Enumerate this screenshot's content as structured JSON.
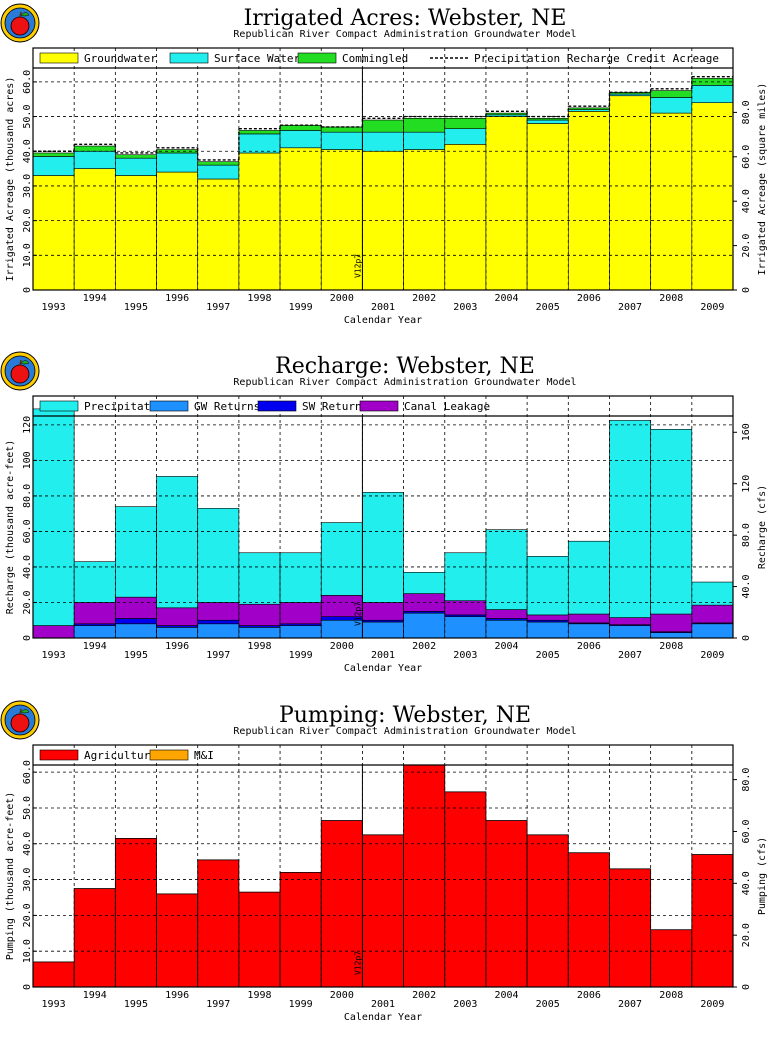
{
  "years": [
    "1993",
    "1994",
    "1995",
    "1996",
    "1997",
    "1998",
    "1999",
    "2000",
    "2001",
    "2002",
    "2003",
    "2004",
    "2005",
    "2006",
    "2007",
    "2008",
    "2009"
  ],
  "marker_label": "V12p7",
  "colors": {
    "groundwater": "#ffff00",
    "surface_water": "#22eeee",
    "commingled": "#22dd22",
    "precipitation": "#22eeee",
    "gw_returns": "#1e90ff",
    "sw_returns": "#0000ee",
    "canal_leakage": "#a000c8",
    "agricultural": "#ff0000",
    "mi": "#ffa500"
  },
  "chart_data": [
    {
      "type": "area",
      "title": "Irrigated Acres: Webster, NE",
      "subtitle": "Republican River Compact Administration Groundwater Model",
      "xlabel": "Calendar Year",
      "ylabel": "Irrigated Acreage (thousand acres)",
      "y2label": "Irrigated Acreage (square miles)",
      "ylim": [
        0,
        64
      ],
      "yticks": [
        0,
        10.0,
        20.0,
        30.0,
        40.0,
        50.0,
        60.0
      ],
      "ytick_labels": [
        "0",
        "10.0",
        "20.0",
        "30.0",
        "40.0",
        "50.0",
        "60.0"
      ],
      "y2ticks": [
        0,
        20.0,
        40.0,
        60.0,
        80.0
      ],
      "y2tick_labels": [
        "0",
        "20.0",
        "40.0",
        "60.0",
        "80.0"
      ],
      "y2_per_y": 1.5625,
      "legend": [
        "Groundwater",
        "Surface Water",
        "Commingled",
        "Precipitation Recharge Credit Acreage"
      ],
      "series": [
        {
          "name": "Groundwater",
          "values": [
            33.0,
            35.0,
            33.0,
            34.0,
            32.0,
            39.5,
            41.0,
            40.5,
            40.0,
            40.5,
            42.0,
            50.0,
            48.0,
            51.5,
            56.0,
            51.0,
            54.0
          ]
        },
        {
          "name": "Surface Water",
          "values": [
            5.5,
            5.0,
            5.0,
            5.5,
            4.0,
            5.5,
            5.0,
            5.0,
            5.5,
            5.0,
            4.5,
            0.5,
            1.0,
            0.5,
            0.5,
            4.5,
            5.0
          ]
        },
        {
          "name": "Commingled",
          "values": [
            1.0,
            1.5,
            1.0,
            1.0,
            1.0,
            1.0,
            1.5,
            1.5,
            3.5,
            4.0,
            3.0,
            0.5,
            0.5,
            0.5,
            0.5,
            2.0,
            2.0
          ]
        }
      ],
      "line_series": {
        "name": "Precipitation Recharge Credit Acreage",
        "values": [
          40.0,
          42.0,
          39.5,
          41.0,
          37.5,
          46.5,
          47.5,
          47.0,
          49.5,
          50.0,
          50.0,
          51.5,
          50.0,
          53.0,
          57.0,
          58.0,
          61.5
        ]
      }
    },
    {
      "type": "area",
      "title": "Recharge: Webster, NE",
      "subtitle": "Republican River Compact Administration Groundwater Model",
      "xlabel": "Calendar Year",
      "ylabel": "Recharge (thousand acre-feet)",
      "y2label": "Recharge (cfs)",
      "ylim": [
        0,
        125
      ],
      "yticks": [
        0,
        20.0,
        40.0,
        60.0,
        80.0,
        100,
        120
      ],
      "ytick_labels": [
        "0",
        "20.0",
        "40.0",
        "60.0",
        "80.0",
        "100",
        "120"
      ],
      "y2ticks": [
        0,
        40.0,
        80.0,
        120,
        160
      ],
      "y2tick_labels": [
        "0",
        "40.0",
        "80.0",
        "120",
        "160"
      ],
      "y2_per_y": 1.3813,
      "legend": [
        "Precipitation",
        "GW Returns",
        "SW Returns",
        "Canal Leakage"
      ],
      "series": [
        {
          "name": "GW Returns",
          "values": [
            0,
            7,
            8,
            6,
            8,
            6,
            7,
            10,
            9,
            14,
            12,
            10,
            9,
            8,
            7,
            3,
            8
          ]
        },
        {
          "name": "SW Returns",
          "values": [
            0,
            1,
            3,
            1,
            2,
            1,
            1,
            2,
            1,
            1,
            1,
            1,
            1,
            0.5,
            0.5,
            0.5,
            0.5
          ]
        },
        {
          "name": "Canal Leakage",
          "values": [
            7,
            12,
            12,
            10,
            10,
            12,
            12,
            12,
            10,
            10,
            8,
            5,
            3,
            5,
            4,
            10,
            10
          ]
        },
        {
          "name": "Precipitation",
          "values": [
            122,
            23,
            51,
            74,
            53,
            29,
            28,
            41,
            62,
            12,
            27,
            45,
            33,
            41,
            111,
            104,
            13
          ]
        }
      ]
    },
    {
      "type": "bar",
      "title": "Pumping: Webster, NE",
      "subtitle": "Republican River Compact Administration Groundwater Model",
      "xlabel": "Calendar Year",
      "ylabel": "Pumping (thousand acre-feet)",
      "y2label": "Pumping (cfs)",
      "ylim": [
        0,
        62
      ],
      "yticks": [
        0,
        10.0,
        20.0,
        30.0,
        40.0,
        50.0,
        60.0
      ],
      "ytick_labels": [
        "0",
        "10.0",
        "20.0",
        "30.0",
        "40.0",
        "50.0",
        "60.0"
      ],
      "y2ticks": [
        0,
        20.0,
        40.0,
        60.0,
        80.0
      ],
      "y2tick_labels": [
        "0",
        "20.0",
        "40.0",
        "60.0",
        "80.0"
      ],
      "y2_per_y": 1.3813,
      "legend": [
        "Agricultural",
        "M&I"
      ],
      "series": [
        {
          "name": "Agricultural",
          "values": [
            7.0,
            27.5,
            41.5,
            26.0,
            35.5,
            26.5,
            32.0,
            46.5,
            42.5,
            62.0,
            54.5,
            46.5,
            42.5,
            37.5,
            33.0,
            16.0,
            37.0
          ]
        },
        {
          "name": "M&I",
          "values": [
            0,
            0,
            0,
            0,
            0,
            0,
            0,
            0,
            0,
            0,
            0,
            0,
            0,
            0,
            0,
            0,
            0
          ]
        }
      ]
    }
  ]
}
